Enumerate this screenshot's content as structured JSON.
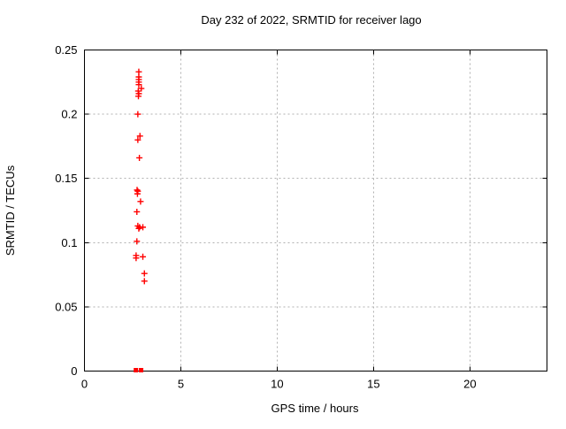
{
  "chart_data": {
    "type": "scatter",
    "title": "Day 232 of 2022, SRMTID for receiver lago",
    "xlabel": "GPS time / hours",
    "ylabel": "SRMTID / TECUs",
    "xlim": [
      0,
      24
    ],
    "ylim": [
      0,
      0.25
    ],
    "grid": true,
    "legend_position": "none",
    "x_ticks": [
      {
        "v": 0,
        "label": "0"
      },
      {
        "v": 5,
        "label": "5"
      },
      {
        "v": 10,
        "label": "10"
      },
      {
        "v": 15,
        "label": "15"
      },
      {
        "v": 20,
        "label": "20"
      }
    ],
    "y_ticks": [
      {
        "v": 0,
        "label": "0"
      },
      {
        "v": 0.05,
        "label": "0.05"
      },
      {
        "v": 0.1,
        "label": "0.1"
      },
      {
        "v": 0.15,
        "label": "0.15"
      },
      {
        "v": 0.2,
        "label": "0.2"
      },
      {
        "v": 0.25,
        "label": "0.25"
      }
    ],
    "marker": "plus",
    "marker_color": "#ff0000",
    "grid_color": "#b0b0b0",
    "axis_color": "#000000",
    "series": [
      {
        "name": "SRMTID",
        "points": [
          [
            2.82,
            0.233
          ],
          [
            2.82,
            0.229
          ],
          [
            2.82,
            0.227
          ],
          [
            2.82,
            0.225
          ],
          [
            2.82,
            0.223
          ],
          [
            2.95,
            0.22
          ],
          [
            2.79,
            0.218
          ],
          [
            2.82,
            0.216
          ],
          [
            2.8,
            0.214
          ],
          [
            2.77,
            0.2
          ],
          [
            2.88,
            0.183
          ],
          [
            2.77,
            0.18
          ],
          [
            2.85,
            0.166
          ],
          [
            2.73,
            0.141
          ],
          [
            2.77,
            0.14
          ],
          [
            2.75,
            0.138
          ],
          [
            2.91,
            0.132
          ],
          [
            2.72,
            0.124
          ],
          [
            2.77,
            0.113
          ],
          [
            2.86,
            0.112
          ],
          [
            3.03,
            0.112
          ],
          [
            2.82,
            0.111
          ],
          [
            2.72,
            0.101
          ],
          [
            2.68,
            0.09
          ],
          [
            3.03,
            0.089
          ],
          [
            2.68,
            0.088
          ],
          [
            3.11,
            0.076
          ],
          [
            3.11,
            0.07
          ]
        ]
      }
    ],
    "zero_clusters": [
      {
        "x": 2.67,
        "y": 0
      },
      {
        "x": 2.94,
        "y": 0
      }
    ]
  }
}
